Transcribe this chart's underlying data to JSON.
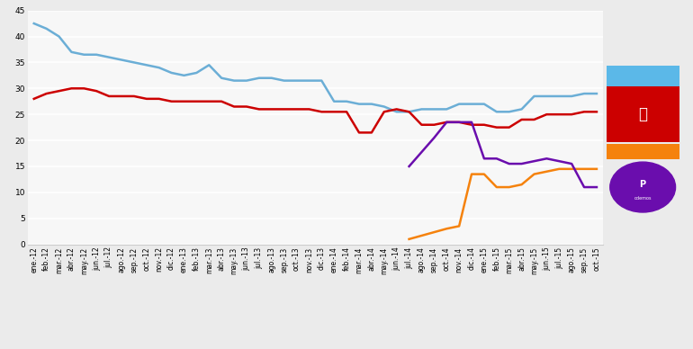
{
  "x_labels": [
    "ene.-12",
    "feb.-12",
    "mar.-12",
    "abr.-12",
    "may.-12",
    "jun.-12",
    "jul.-12",
    "ago.-12",
    "sep.-12",
    "oct.-12",
    "nov.-12",
    "dic.-12",
    "ene.-13",
    "feb.-13",
    "mar.-13",
    "abr.-13",
    "may.-13",
    "jun.-13",
    "jul.-13",
    "ago.-13",
    "sep.-13",
    "oct.-13",
    "nov.-13",
    "dic.-13",
    "ene.-14",
    "feb.-14",
    "mar.-14",
    "abr.-14",
    "may.-14",
    "jun.-14",
    "jul.-14",
    "ago.-14",
    "sep.-14",
    "oct.-14",
    "nov.-14",
    "dic.-14",
    "ene.-15",
    "feb.-15",
    "mar.-15",
    "abr.-15",
    "may.-15",
    "jun.-15",
    "jul.-15",
    "ago.-15",
    "sep.-15",
    "oct.-15"
  ],
  "pp_vals": [
    42.5,
    41.5,
    40.0,
    37.0,
    36.5,
    36.5,
    36.0,
    35.5,
    35.0,
    34.5,
    34.0,
    33.0,
    32.5,
    33.0,
    34.5,
    32.0,
    31.5,
    31.5,
    32.0,
    32.0,
    31.5,
    31.5,
    31.5,
    31.5,
    27.5,
    27.5,
    27.0,
    27.0,
    26.5,
    25.5,
    25.5,
    26.0,
    26.0,
    26.0,
    27.0,
    27.0,
    27.0,
    25.5,
    25.5,
    26.0,
    28.5,
    28.5,
    28.5,
    28.5,
    29.0,
    29.0
  ],
  "psoe_vals": [
    28.0,
    29.0,
    29.5,
    30.0,
    30.0,
    29.5,
    28.5,
    28.5,
    28.5,
    28.0,
    28.0,
    27.5,
    27.5,
    27.5,
    27.5,
    27.5,
    26.5,
    26.5,
    26.0,
    26.0,
    26.0,
    26.0,
    26.0,
    25.5,
    25.5,
    25.5,
    21.5,
    21.5,
    25.5,
    26.0,
    25.5,
    23.0,
    23.0,
    23.5,
    23.5,
    23.0,
    23.0,
    22.5,
    22.5,
    24.0,
    24.0,
    25.0,
    25.0,
    25.0,
    25.5,
    25.5
  ],
  "ciudadanos_x": [
    30,
    33,
    34,
    35,
    36,
    37,
    38,
    39,
    40,
    41,
    42,
    43,
    44,
    45
  ],
  "ciudadanos_y": [
    1.0,
    3.0,
    3.5,
    13.5,
    13.5,
    11.0,
    11.0,
    11.5,
    13.5,
    14.0,
    14.5,
    14.5,
    14.5,
    14.5
  ],
  "podemos_x": [
    30,
    32,
    33,
    34,
    35,
    36,
    37,
    38,
    39,
    40,
    41,
    42,
    43,
    44,
    45
  ],
  "podemos_y": [
    15.0,
    20.5,
    23.5,
    23.5,
    23.5,
    16.5,
    16.5,
    15.5,
    15.5,
    16.0,
    16.5,
    16.0,
    15.5,
    11.0,
    11.0
  ],
  "pp_color": "#6BAED6",
  "psoe_color": "#CC0000",
  "ciudadanos_color": "#F5820D",
  "podemos_color": "#6A0DAD",
  "bg_color": "#EBEBEB",
  "plot_bg_color": "#F7F7F7",
  "ylim": [
    0,
    45
  ],
  "yticks": [
    0,
    5,
    10,
    15,
    20,
    25,
    30,
    35,
    40,
    45
  ]
}
